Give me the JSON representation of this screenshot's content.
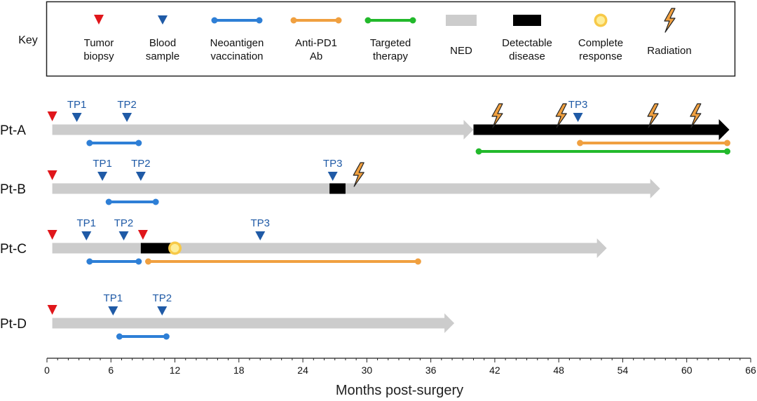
{
  "chart_data": {
    "type": "timeline",
    "title": "",
    "xlabel": "Months post-surgery",
    "xlim": [
      0,
      66
    ],
    "xticks": [
      0,
      6,
      12,
      18,
      24,
      30,
      36,
      42,
      48,
      54,
      60,
      66
    ],
    "key": {
      "title": "Key",
      "items": [
        {
          "id": "tumor-biopsy",
          "label": [
            "Tumor",
            "biopsy"
          ],
          "color": "#e0161b"
        },
        {
          "id": "blood-sample",
          "label": [
            "Blood",
            "sample"
          ],
          "color": "#1f5aa6"
        },
        {
          "id": "neoantigen-vaccination",
          "label": [
            "Neoantigen",
            "vaccination"
          ],
          "color": "#2e7fd6"
        },
        {
          "id": "anti-pd1",
          "label": [
            "Anti-PD1",
            "Ab"
          ],
          "color": "#f0a040"
        },
        {
          "id": "targeted-therapy",
          "label": [
            "Targeted",
            "therapy"
          ],
          "color": "#22b92b"
        },
        {
          "id": "ned",
          "label": [
            "NED"
          ],
          "color": "#cccccc"
        },
        {
          "id": "detectable-disease",
          "label": [
            "Detectable",
            "disease"
          ],
          "color": "#000000"
        },
        {
          "id": "complete-response",
          "label": [
            "Complete",
            "response"
          ],
          "color": "#f7c948"
        },
        {
          "id": "radiation",
          "label": [
            "Radiation"
          ],
          "color": "#f0a040"
        }
      ]
    },
    "patients": [
      {
        "name": "Pt-A",
        "ned": [
          0.5,
          40
        ],
        "disease": [
          40,
          64
        ],
        "biopsies": [
          0.5
        ],
        "samples": [
          {
            "label": "TP1",
            "x": 2.8
          },
          {
            "label": "TP2",
            "x": 7.5
          },
          {
            "label": "TP3",
            "x": 49.8
          }
        ],
        "radiation": [
          42.2,
          48.2,
          56.8,
          60.8
        ],
        "therapies": [
          {
            "type": "neoantigen-vaccination",
            "start": 4,
            "end": 8.6
          },
          {
            "type": "anti-pd1",
            "start": 50,
            "end": 63.8
          },
          {
            "type": "targeted-therapy",
            "start": 40.5,
            "end": 63.8
          }
        ]
      },
      {
        "name": "Pt-B",
        "ned": [
          0.5,
          57.5
        ],
        "disease": [
          26.5,
          28
        ],
        "biopsies": [
          0.5
        ],
        "samples": [
          {
            "label": "TP1",
            "x": 5.2
          },
          {
            "label": "TP2",
            "x": 8.8
          },
          {
            "label": "TP3",
            "x": 26.8
          }
        ],
        "radiation": [
          29.2
        ],
        "therapies": [
          {
            "type": "neoantigen-vaccination",
            "start": 5.8,
            "end": 10.2
          }
        ]
      },
      {
        "name": "Pt-C",
        "ned": [
          0.5,
          52.5
        ],
        "disease": [
          8.8,
          11.7
        ],
        "biopsies": [
          0.5,
          9
        ],
        "samples": [
          {
            "label": "TP1",
            "x": 3.7
          },
          {
            "label": "TP2",
            "x": 7.2
          },
          {
            "label": "TP3",
            "x": 20
          }
        ],
        "complete_response": [
          12
        ],
        "therapies": [
          {
            "type": "neoantigen-vaccination",
            "start": 4,
            "end": 8.6
          },
          {
            "type": "anti-pd1",
            "start": 9.5,
            "end": 34.8
          }
        ]
      },
      {
        "name": "Pt-D",
        "ned": [
          0.5,
          38.2
        ],
        "biopsies": [
          0.5
        ],
        "samples": [
          {
            "label": "TP1",
            "x": 6.2
          },
          {
            "label": "TP2",
            "x": 10.8
          }
        ],
        "therapies": [
          {
            "type": "neoantigen-vaccination",
            "start": 6.8,
            "end": 11.2
          }
        ]
      }
    ]
  }
}
